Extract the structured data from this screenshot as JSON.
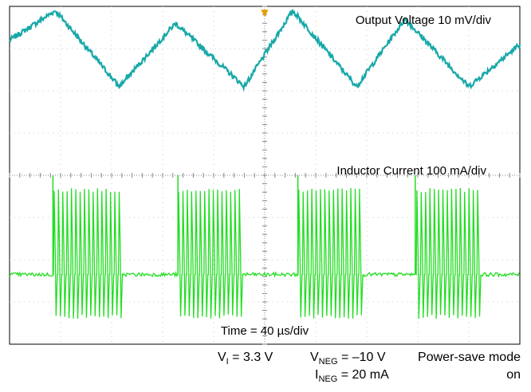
{
  "chart_data": [
    {
      "type": "line",
      "title": "",
      "xlabel": "Time = 40 µs/div",
      "grid": true,
      "divisions": {
        "x": 10,
        "y": 8
      },
      "x_axis": {
        "units": "div",
        "range": [
          0,
          10
        ],
        "scale_label": "40 µs/div"
      },
      "y_axis": {
        "units": "div",
        "range": [
          0,
          8
        ]
      },
      "trigger_marker": {
        "x_div": 5
      },
      "series": [
        {
          "name": "Output Voltage 10 mV/div",
          "color": "#18a8a8",
          "waveform": "triangle",
          "x_div": [
            0,
            0.9,
            2.15,
            3.25,
            4.6,
            5.55,
            6.8,
            7.75,
            9.0,
            10.0
          ],
          "y_div": [
            7.2,
            7.9,
            6.1,
            7.6,
            6.1,
            7.9,
            6.1,
            7.7,
            6.1,
            7.1
          ]
        },
        {
          "name": "Inductor Current 100 mA/div",
          "color": "#22dd22",
          "waveform": "burst",
          "baseline_y_div": 1.65,
          "burst_x_div": [
            [
              0.85,
              2.15
            ],
            [
              3.3,
              4.55
            ],
            [
              5.65,
              6.9
            ],
            [
              7.95,
              9.2
            ]
          ],
          "burst_peak_y_div": 3.7,
          "burst_low_y_div": 0.6
        }
      ]
    }
  ],
  "conditions": {
    "vi_main": "V",
    "vi_sub": "I",
    "vi_value": " = 3.3 V",
    "vneg_main": "V",
    "vneg_sub": "NEG",
    "vneg_value": " = –10 V",
    "ineg_main": "I",
    "ineg_sub": "NEG",
    "ineg_value": " = 20 mA",
    "mode_line1": "Power-save mode",
    "mode_line2": "on"
  }
}
